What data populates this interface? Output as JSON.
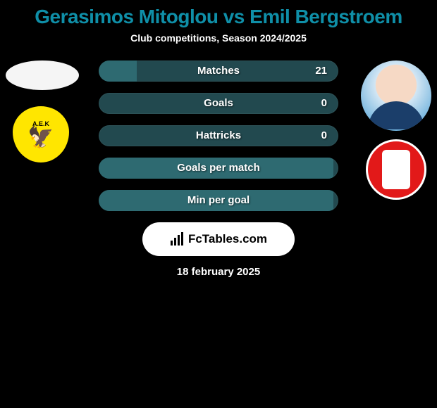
{
  "title_color": "#0f8fa8",
  "background_color": "#000000",
  "text_color": "#ffffff",
  "pill_bg": "#22494f",
  "pill_fill": "#2e6a71",
  "player1": "Gerasimos Mitoglou",
  "player2": "Emil Bergstroem",
  "title_joiner": " vs ",
  "subtitle": "Club competitions, Season 2024/2025",
  "stats": [
    {
      "label": "Matches",
      "value": "21",
      "fill_pct": 16
    },
    {
      "label": "Goals",
      "value": "0",
      "fill_pct": 0
    },
    {
      "label": "Hattricks",
      "value": "0",
      "fill_pct": 0
    },
    {
      "label": "Goals per match",
      "value": "",
      "fill_pct": 98
    },
    {
      "label": "Min per goal",
      "value": "",
      "fill_pct": 98
    }
  ],
  "brand_label": "FcTables.com",
  "date_text": "18 february 2025",
  "team1": {
    "name": "AEK Athens",
    "text": "Α.Ε.Κ",
    "bg": "#ffe600"
  },
  "team2": {
    "name": "Almere City",
    "bg": "#e21919"
  }
}
